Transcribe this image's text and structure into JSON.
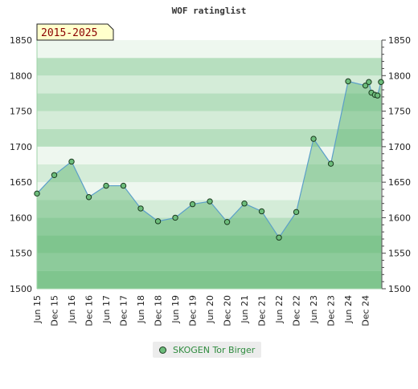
{
  "chart_data": {
    "type": "area",
    "title": "WOF ratinglist",
    "badge": "2015-2025",
    "xlabel": "",
    "ylabel": "",
    "ylim": [
      1500,
      1850
    ],
    "yticks": [
      1500,
      1550,
      1600,
      1650,
      1700,
      1750,
      1800,
      1850
    ],
    "x_tick_labels": [
      "Jun 15",
      "Dec 15",
      "Jun 16",
      "Dec 16",
      "Jun 17",
      "Dec 17",
      "Jun 18",
      "Dec 18",
      "Jun 19",
      "Dec 19",
      "Jun 20",
      "Dec 20",
      "Jun 21",
      "Dec 21",
      "Jun 22",
      "Dec 22",
      "Jun 23",
      "Dec 23",
      "Jun 24",
      "Dec 24"
    ],
    "series": [
      {
        "name": "SKOGEN Tor Birger",
        "color": "#6dbd7b",
        "points": [
          {
            "x": 0.0,
            "y": 1634
          },
          {
            "x": 1.0,
            "y": 1660
          },
          {
            "x": 2.0,
            "y": 1679
          },
          {
            "x": 3.0,
            "y": 1629
          },
          {
            "x": 4.0,
            "y": 1645
          },
          {
            "x": 5.0,
            "y": 1645
          },
          {
            "x": 6.0,
            "y": 1613
          },
          {
            "x": 7.0,
            "y": 1595
          },
          {
            "x": 8.0,
            "y": 1600
          },
          {
            "x": 9.0,
            "y": 1619
          },
          {
            "x": 10.0,
            "y": 1623
          },
          {
            "x": 11.0,
            "y": 1594
          },
          {
            "x": 12.0,
            "y": 1620
          },
          {
            "x": 13.0,
            "y": 1609
          },
          {
            "x": 14.0,
            "y": 1572
          },
          {
            "x": 15.0,
            "y": 1608
          },
          {
            "x": 16.0,
            "y": 1711
          },
          {
            "x": 17.0,
            "y": 1676
          },
          {
            "x": 18.0,
            "y": 1792
          },
          {
            "x": 19.0,
            "y": 1786
          },
          {
            "x": 19.2,
            "y": 1791
          },
          {
            "x": 19.35,
            "y": 1776
          },
          {
            "x": 19.55,
            "y": 1773
          },
          {
            "x": 19.7,
            "y": 1772
          },
          {
            "x": 19.9,
            "y": 1791
          }
        ]
      }
    ],
    "legend": {
      "position": "bottom"
    }
  },
  "colors": {
    "band_light": "#eef7ef",
    "band_mid": "#d4ecd8",
    "band_dark": "#b7dfbf",
    "band_low": "#9dd3a8",
    "area_fill": "#5bb36e",
    "line": "#5b9fc9",
    "marker_fill": "#6dbd7b",
    "marker_stroke": "#1a3a1f",
    "badge_bg": "#ffffcc",
    "badge_text": "#8b0000"
  }
}
